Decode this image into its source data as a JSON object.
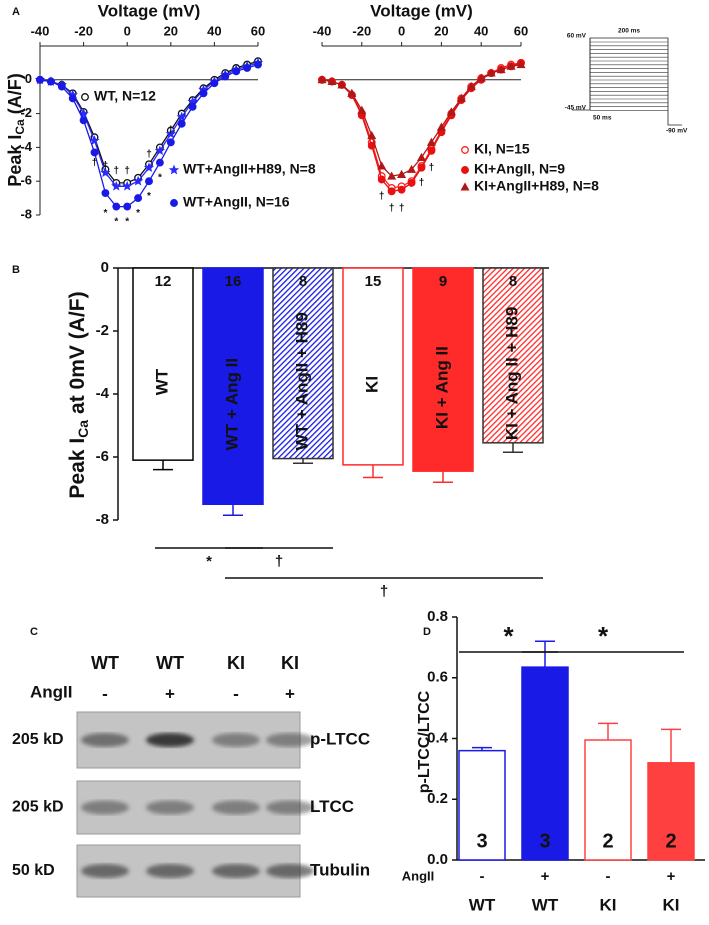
{
  "chart_data": [
    {
      "type": "line",
      "panel": "A",
      "x_label": "Voltage (mV)",
      "y_label": [
        "Peak I",
        "Ca",
        "(A/F)"
      ],
      "x": [
        -40,
        -35,
        -30,
        -25,
        -20,
        -15,
        -10,
        -5,
        0,
        5,
        10,
        15,
        20,
        25,
        30,
        35,
        40,
        45,
        50,
        55,
        60
      ],
      "xlim": [
        -40,
        60
      ],
      "xticks": [
        -40,
        -20,
        0,
        20,
        40,
        60
      ],
      "ylim": [
        -8,
        2
      ],
      "yticks": [
        0,
        -2,
        -4,
        -6,
        -8
      ],
      "zero_line": true,
      "series": [
        {
          "name": "WT, N=12",
          "color": "#111111",
          "marker": "circle-open",
          "values": [
            0,
            -0.1,
            -0.3,
            -0.8,
            -1.9,
            -3.4,
            -5.3,
            -6.1,
            -6.1,
            -5.8,
            -5.0,
            -4.0,
            -3.0,
            -2.0,
            -1.2,
            -0.5,
            0.0,
            0.4,
            0.7,
            0.9,
            1.1
          ]
        },
        {
          "name": "WT+AngII+H89, N=8",
          "color": "#2a2aff",
          "marker": "star",
          "values": [
            0,
            -0.1,
            -0.3,
            -0.9,
            -2.0,
            -3.6,
            -5.5,
            -6.3,
            -6.3,
            -6.0,
            -5.2,
            -4.2,
            -3.2,
            -2.2,
            -1.3,
            -0.6,
            -0.1,
            0.3,
            0.6,
            0.8,
            1.0
          ]
        },
        {
          "name": "WT+AngII, N=16",
          "color": "#1a1ae6",
          "marker": "circle",
          "values": [
            0,
            -0.1,
            -0.4,
            -1.1,
            -2.4,
            -4.3,
            -6.7,
            -7.5,
            -7.5,
            -7.0,
            -6.0,
            -4.9,
            -3.7,
            -2.6,
            -1.6,
            -0.8,
            -0.2,
            0.2,
            0.5,
            0.7,
            0.9
          ]
        }
      ],
      "annotations": [
        {
          "text": "†",
          "x": -15,
          "y": -4.9
        },
        {
          "text": "†",
          "x": -10,
          "y": -5.1
        },
        {
          "text": "†",
          "x": -5,
          "y": -5.4
        },
        {
          "text": "†",
          "x": 0,
          "y": -5.4
        },
        {
          "text": "†",
          "x": 10,
          "y": -4.4
        },
        {
          "text": "†",
          "x": 20,
          "y": -3.0
        },
        {
          "text": "*",
          "x": -10,
          "y": -7.9
        },
        {
          "text": "*",
          "x": -5,
          "y": -8.4
        },
        {
          "text": "*",
          "x": 0,
          "y": -8.4
        },
        {
          "text": "*",
          "x": 5,
          "y": -7.9
        },
        {
          "text": "*",
          "x": 10,
          "y": -6.9
        },
        {
          "text": "*",
          "x": 15,
          "y": -5.8
        }
      ]
    },
    {
      "type": "line",
      "x_label": "Voltage (mV)",
      "x": [
        -40,
        -35,
        -30,
        -25,
        -20,
        -15,
        -10,
        -5,
        0,
        5,
        10,
        15,
        20,
        25,
        30,
        35,
        40,
        45,
        50,
        55,
        60
      ],
      "xlim": [
        -40,
        60
      ],
      "xticks": [
        -40,
        -20,
        0,
        20,
        40,
        60
      ],
      "ylim": [
        -8,
        2
      ],
      "zero_line": true,
      "series": [
        {
          "name": "KI, N=15",
          "color": "#ff2020",
          "marker": "circle-open",
          "values": [
            0,
            -0.1,
            -0.3,
            -0.9,
            -2.0,
            -3.7,
            -5.7,
            -6.4,
            -6.3,
            -6.0,
            -5.1,
            -4.1,
            -3.0,
            -2.0,
            -1.1,
            -0.4,
            0.1,
            0.4,
            0.7,
            0.9,
            1.0
          ]
        },
        {
          "name": "KI+AngII, N=9",
          "color": "#e81010",
          "marker": "circle",
          "values": [
            0,
            -0.1,
            -0.3,
            -0.9,
            -2.1,
            -3.9,
            -5.9,
            -6.6,
            -6.5,
            -6.1,
            -5.2,
            -4.2,
            -3.1,
            -2.1,
            -1.2,
            -0.5,
            0.0,
            0.4,
            0.6,
            0.8,
            1.0
          ]
        },
        {
          "name": "KI+AngII+H89, N=8",
          "color": "#b01818",
          "marker": "triangle",
          "values": [
            0,
            -0.1,
            -0.3,
            -0.8,
            -1.8,
            -3.3,
            -5.1,
            -5.7,
            -5.6,
            -5.3,
            -4.6,
            -3.7,
            -2.8,
            -1.9,
            -1.1,
            -0.4,
            0.1,
            0.4,
            0.6,
            0.8,
            0.9
          ]
        }
      ],
      "annotations": [
        {
          "text": "†",
          "x": -10,
          "y": -6.9
        },
        {
          "text": "†",
          "x": -5,
          "y": -7.6
        },
        {
          "text": "†",
          "x": 0,
          "y": -7.6
        },
        {
          "text": "†",
          "x": 10,
          "y": -6.1
        },
        {
          "text": "†",
          "x": 15,
          "y": -5.2
        }
      ],
      "protocol": {
        "top": "60 mV",
        "duration": "200 ms",
        "hold": "-45 mV",
        "pre": "50 ms",
        "end": "-90 mV"
      }
    },
    {
      "type": "bar",
      "panel": "B",
      "y_label": [
        "Peak I",
        "Ca",
        "at 0mV (A/F)"
      ],
      "categories": [
        "WT",
        "WT + Ang II",
        "WT + AngII + H89",
        "KI",
        "KI + Ang II",
        "KI + Ang II + H89"
      ],
      "values": [
        -6.1,
        -7.5,
        -6.05,
        -6.25,
        -6.45,
        -5.55
      ],
      "errors": [
        0.3,
        0.35,
        0.15,
        0.4,
        0.35,
        0.3
      ],
      "n": [
        12,
        16,
        8,
        15,
        9,
        8
      ],
      "colors": [
        "#000000",
        "#1a1ae6",
        "#1a1ae6",
        "#ff2a2a",
        "#ff2a2a",
        "#ff2a2a"
      ],
      "styles": [
        "open",
        "solid",
        "hatched",
        "open",
        "solid",
        "hatched"
      ],
      "label_colors": [
        "#000000",
        "#ffffff",
        "#000000",
        "#ff2a2a",
        "#ffffff",
        "#000000"
      ],
      "ylim": [
        -8,
        0
      ],
      "yticks": [
        0,
        -2,
        -4,
        -6,
        -8
      ],
      "significance": [
        {
          "label": "*",
          "from": 0,
          "to": 1
        },
        {
          "label": "†",
          "from": 1,
          "to": 2
        },
        {
          "label": "†",
          "from": 1,
          "to": 5
        }
      ]
    },
    {
      "type": "bar",
      "panel": "D",
      "y_label": [
        "p-LTCC/LTCC"
      ],
      "categories": [
        "WT",
        "WT",
        "KI",
        "KI"
      ],
      "category_colors": [
        "#1515ff",
        "#1515ff",
        "#ff3b1f",
        "#ff3b1f"
      ],
      "treatment_label": "AngII",
      "treatment": [
        "-",
        "+",
        "-",
        "+"
      ],
      "values": [
        0.36,
        0.635,
        0.395,
        0.32
      ],
      "errors": [
        0.01,
        0.085,
        0.055,
        0.11
      ],
      "n": [
        3,
        3,
        2,
        2
      ],
      "colors": [
        "#1a1ae6",
        "#1a1ae6",
        "#ff4040",
        "#ff4040"
      ],
      "styles": [
        "open",
        "solid",
        "open",
        "solid"
      ],
      "ylim": [
        0,
        0.8
      ],
      "yticks": [
        {
          "value": 0,
          "label": "0.0"
        },
        0.2,
        0.4,
        0.6,
        0.8
      ],
      "significance": [
        {
          "label": "*",
          "from": 0,
          "to": 1
        },
        {
          "label": "*",
          "from": 1,
          "to": 3
        }
      ]
    }
  ],
  "blot": {
    "panel": "C",
    "lanes": [
      "WT",
      "WT",
      "KI",
      "KI"
    ],
    "lane_colors": [
      "#1515ff",
      "#1515ff",
      "#ff3b1f",
      "#ff3b1f"
    ],
    "treatment_label": "AngII",
    "treatment": [
      "-",
      "+",
      "-",
      "+"
    ],
    "rows": [
      {
        "size": "205 kD",
        "target": "p-LTCC"
      },
      {
        "size": "205 kD",
        "target": "LTCC"
      },
      {
        "size": "50 kD",
        "target": "Tubulin"
      }
    ]
  }
}
